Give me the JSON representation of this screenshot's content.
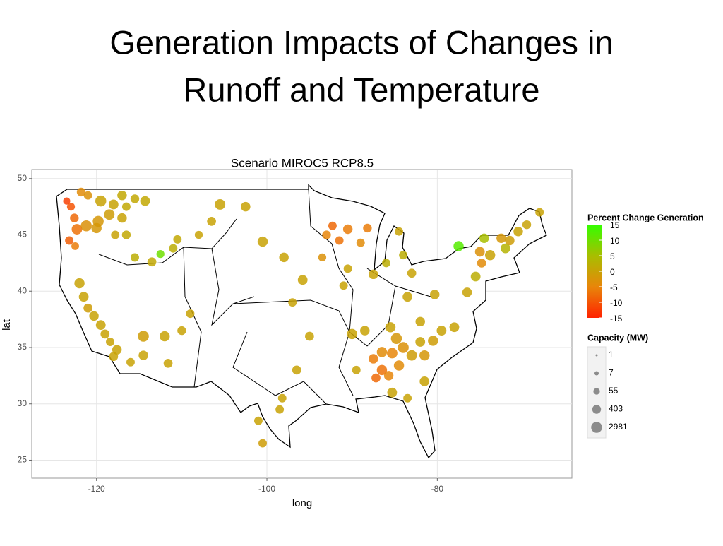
{
  "slide": {
    "title_lines": [
      "Generation Impacts of Changes in",
      "Runoff and Temperature"
    ]
  },
  "chart_data": {
    "type": "scatter",
    "title": "Scenario MIROC5 RCP8.5",
    "x_label": "long",
    "y_label": "lat",
    "xlim": [
      -127.6,
      -64.2
    ],
    "ylim": [
      23.4,
      50.8
    ],
    "xticks": [
      -120,
      -100,
      -80
    ],
    "yticks": [
      25,
      30,
      35,
      40,
      45,
      50
    ],
    "grid": true,
    "x": [
      -123,
      -122.6,
      -122.3,
      -123.2,
      -122.5,
      -123.5,
      -121.8,
      -121,
      -119.5,
      -118,
      -117,
      -116.5,
      -118.5,
      -119.8,
      -117,
      -115.5,
      -114.3,
      -121.2,
      -120,
      -117.8,
      -116.5,
      -115.5,
      -113.5,
      -112.5,
      -111,
      -110.5,
      -108,
      -106.5,
      -105.5,
      -102.5,
      -100.5,
      -98,
      -95.8,
      -97,
      -95,
      -96.5,
      -98.2,
      -98.5,
      -100.5,
      -101,
      -122,
      -121.5,
      -121,
      -120.3,
      -119.5,
      -119,
      -118.4,
      -117.6,
      -116,
      -118,
      -114.5,
      -114.5,
      -112,
      -110,
      -109,
      -111.6,
      -93,
      -91.5,
      -90.5,
      -89,
      -92.3,
      -88.2,
      -93.5,
      -90.5,
      -91,
      -87.5,
      -86,
      -84.5,
      -84,
      -83,
      -85.5,
      -84.8,
      -84,
      -85.3,
      -86.5,
      -87.5,
      -86.5,
      -85.7,
      -87.2,
      -84.5,
      -83,
      -82,
      -81.5,
      -80.5,
      -79.5,
      -78,
      -82,
      -83.5,
      -80.3,
      -81.5,
      -83.5,
      -85.3,
      -89.5,
      -90,
      -88.5,
      -74.5,
      -75,
      -73.8,
      -72.5,
      -72,
      -71.5,
      -70.5,
      -69.5,
      -74.8,
      -77.5,
      -75.5,
      -76.5,
      -68
    ],
    "values": [
      47.5,
      46.5,
      45.5,
      44.5,
      44,
      48,
      48.8,
      48.5,
      48,
      47.7,
      48.5,
      47.5,
      46.8,
      46.2,
      46.5,
      48.2,
      48,
      45.8,
      45.6,
      45,
      45,
      43,
      42.6,
      43.3,
      43.8,
      44.6,
      45,
      46.2,
      47.7,
      47.5,
      44.4,
      43,
      41,
      39,
      36,
      33,
      30.5,
      29.5,
      26.5,
      28.5,
      40.7,
      39.5,
      38.5,
      37.8,
      37,
      36.2,
      35.5,
      34.8,
      33.7,
      34.2,
      36,
      34.3,
      36,
      36.5,
      38,
      33.6,
      45,
      44.5,
      45.5,
      44.3,
      45.8,
      45.6,
      43,
      42,
      40.5,
      41.5,
      42.5,
      45.3,
      43.2,
      41.6,
      36.8,
      35.8,
      35,
      34.5,
      34.6,
      34,
      33,
      32.5,
      32.3,
      33.4,
      34.3,
      35.5,
      34.3,
      35.6,
      36.5,
      36.8,
      37.3,
      39.5,
      39.7,
      32,
      30.5,
      31,
      33,
      36.2,
      36.5,
      44.7,
      43.5,
      43.2,
      44.7,
      43.8,
      44.5,
      45.3,
      45.9,
      42.5,
      44,
      41.3,
      39.9,
      47
    ],
    "capacity": [
      200,
      400,
      2000,
      300,
      150,
      100,
      400,
      300,
      2981,
      1000,
      800,
      300,
      2000,
      2981,
      800,
      400,
      1000,
      2981,
      1500,
      300,
      400,
      300,
      500,
      200,
      300,
      300,
      200,
      500,
      2000,
      800,
      1500,
      800,
      1000,
      300,
      500,
      500,
      300,
      300,
      300,
      300,
      1500,
      1000,
      500,
      800,
      1000,
      500,
      300,
      800,
      300,
      500,
      2981,
      800,
      1500,
      400,
      300,
      500,
      400,
      300,
      800,
      300,
      300,
      400,
      200,
      300,
      300,
      800,
      300,
      300,
      300,
      500,
      1500,
      2981,
      2981,
      2000,
      1500,
      800,
      1500,
      800,
      500,
      1500,
      2000,
      1000,
      1500,
      1500,
      1000,
      1000,
      800,
      1000,
      800,
      1000,
      300,
      1000,
      300,
      1500,
      800,
      800,
      1000,
      1500,
      800,
      1000,
      800,
      800,
      400,
      500,
      1500,
      1000,
      800,
      300
    ],
    "percent_change": [
      -10,
      -8,
      -7,
      -9,
      -6,
      -12,
      -4,
      -3,
      0,
      0,
      1,
      1,
      -1,
      -2,
      0,
      1,
      1,
      -3,
      -2,
      0,
      1,
      2,
      1,
      10,
      2,
      1,
      0,
      0,
      0,
      0,
      0,
      0,
      0,
      0,
      0,
      0,
      0,
      0,
      -1,
      0,
      0,
      0,
      -1,
      0,
      0,
      0,
      0,
      0,
      0,
      0,
      -1,
      0,
      0,
      0,
      0,
      0,
      -5,
      -7,
      -6,
      -4,
      -8,
      -6,
      -3,
      0,
      0,
      0,
      2,
      0,
      2,
      0,
      0,
      -2,
      -3,
      -5,
      -4,
      -6,
      -7,
      -5,
      -8,
      -4,
      -1,
      0,
      -2,
      -1,
      0,
      0,
      0,
      0,
      0,
      0,
      0,
      0,
      0,
      0,
      0,
      5,
      -3,
      0,
      -2,
      3,
      -1,
      0,
      0,
      -4,
      12,
      2,
      0,
      0
    ],
    "color_scale": {
      "title": "Percent Change Generation",
      "lim": [
        -15,
        15
      ],
      "ticks": [
        15,
        10,
        5,
        0,
        -5,
        -10,
        -15
      ],
      "colors": [
        "#ff2200",
        "#e8860a",
        "#a8be00",
        "#33ff00"
      ]
    },
    "size_scale": {
      "title": "Capacity (MW)",
      "values": [
        1,
        7,
        55,
        403,
        2981
      ],
      "color": "#8c8c8c"
    }
  }
}
